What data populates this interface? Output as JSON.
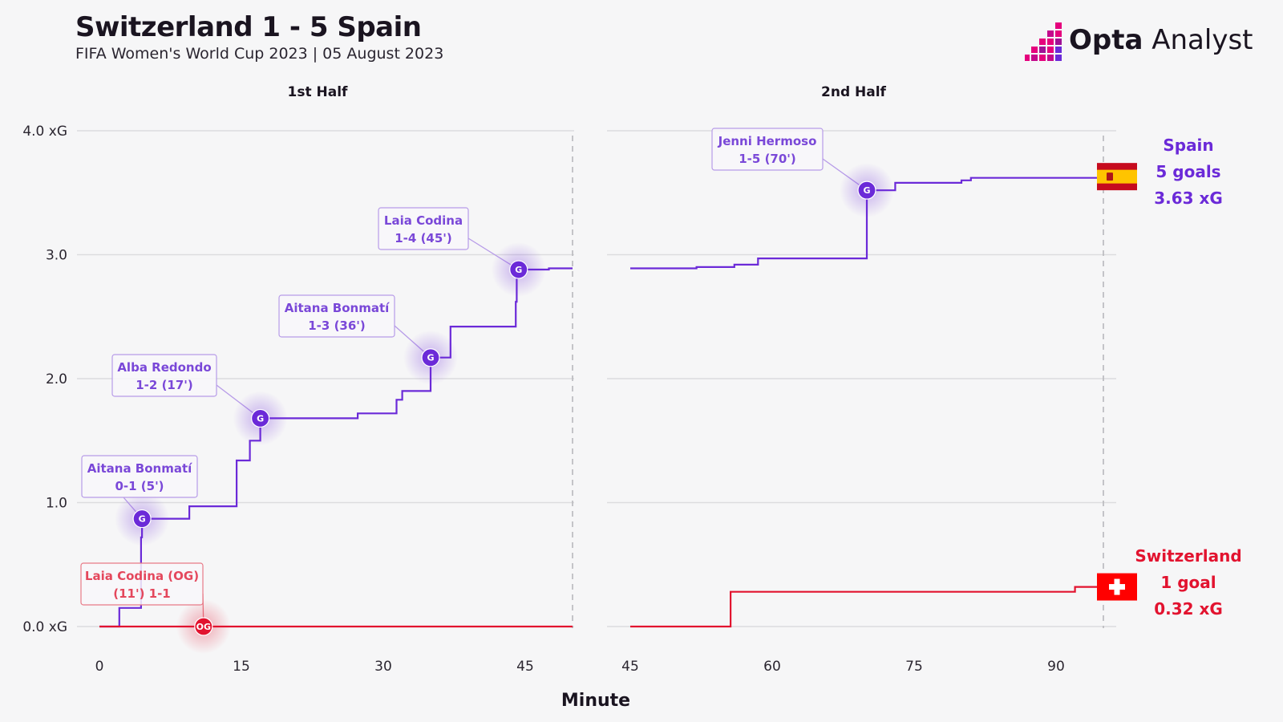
{
  "header": {
    "title": "Switzerland 1 - 5 Spain",
    "subtitle": "FIFA Women's World Cup 2023 | 05 August 2023"
  },
  "brand": {
    "name_bold": "Opta",
    "name_light": " Analyst",
    "colors": {
      "magenta": "#e5007d",
      "purple": "#6b2ad8",
      "dark": "#1a1420"
    }
  },
  "chart_data": {
    "type": "line",
    "step": true,
    "xlabel": "Minute",
    "ylim": [
      0,
      4
    ],
    "y_ticks": [
      {
        "value": 0,
        "label": "0.0 xG"
      },
      {
        "value": 1,
        "label": "1.0"
      },
      {
        "value": 2,
        "label": "2.0"
      },
      {
        "value": 3,
        "label": "3.0"
      },
      {
        "value": 4,
        "label": "4.0 xG"
      }
    ],
    "grid": true,
    "panels": [
      {
        "name": "1st Half",
        "xlim": [
          0,
          50
        ],
        "x_ticks": [
          0,
          15,
          30,
          45
        ],
        "end_line": 50
      },
      {
        "name": "2nd Half",
        "xlim": [
          45,
          95
        ],
        "x_ticks": [
          45,
          60,
          75,
          90
        ],
        "end_line": 95
      }
    ],
    "series": [
      {
        "name": "Spain",
        "color": "#6b2ad8",
        "goals_label": "5 goals",
        "xg_label": "3.63 xG",
        "flag": "spain-flag",
        "steps": [
          {
            "half": "1st Half",
            "points": [
              [
                0,
                0
              ],
              [
                2.1,
                0.15
              ],
              [
                4.4,
                0.72
              ],
              [
                4.5,
                0.87
              ],
              [
                9.5,
                0.97
              ],
              [
                14.5,
                1.34
              ],
              [
                15.9,
                1.5
              ],
              [
                17,
                1.68
              ],
              [
                27.3,
                1.72
              ],
              [
                31.4,
                1.83
              ],
              [
                32,
                1.9
              ],
              [
                35,
                2.17
              ],
              [
                37.1,
                2.42
              ],
              [
                44,
                2.62
              ],
              [
                44.1,
                2.88
              ],
              [
                47.5,
                2.89
              ],
              [
                50,
                2.89
              ]
            ]
          },
          {
            "half": "2nd Half",
            "points": [
              [
                45,
                2.89
              ],
              [
                52,
                2.9
              ],
              [
                56,
                2.92
              ],
              [
                58.5,
                2.97
              ],
              [
                70,
                3.52
              ],
              [
                73,
                3.58
              ],
              [
                80,
                3.6
              ],
              [
                81,
                3.62
              ],
              [
                95,
                3.63
              ]
            ]
          }
        ]
      },
      {
        "name": "Switzerland",
        "color": "#e2132f",
        "goals_label": "1 goal",
        "xg_label": "0.32 xG",
        "flag": "switzerland-flag",
        "steps": [
          {
            "half": "1st Half",
            "points": [
              [
                0,
                0
              ],
              [
                50,
                0
              ]
            ]
          },
          {
            "half": "2nd Half",
            "points": [
              [
                45,
                0
              ],
              [
                55.6,
                0.28
              ],
              [
                92,
                0.32
              ],
              [
                95,
                0.32
              ]
            ]
          }
        ]
      }
    ],
    "annotations": [
      {
        "series": "Spain",
        "x": 4.5,
        "y": 0.87,
        "marker": "G",
        "line1": "Aitana Bonmatí",
        "line2": "0-1 (5')"
      },
      {
        "series": "Spain",
        "x": 17,
        "y": 1.68,
        "marker": "G",
        "line1": "Alba Redondo",
        "line2": "1-2 (17')"
      },
      {
        "series": "Spain",
        "x": 35,
        "y": 2.17,
        "marker": "G",
        "line1": "Aitana Bonmatí",
        "line2": "1-3 (36')"
      },
      {
        "series": "Spain",
        "x": 44.3,
        "y": 2.88,
        "marker": "G",
        "line1": "Laia Codina",
        "line2": "1-4 (45')"
      },
      {
        "series": "Spain",
        "x": 70,
        "y": 3.52,
        "marker": "G",
        "line1": "Jenni Hermoso",
        "line2": "1-5 (70')"
      },
      {
        "series": "Switzerland",
        "x": 11,
        "y": 0,
        "marker": "OG",
        "line1": "Laia Codina (OG)",
        "line2": "(11') 1-1"
      }
    ]
  }
}
